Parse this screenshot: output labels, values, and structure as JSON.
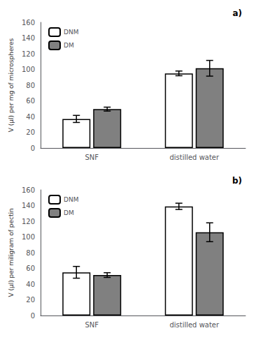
{
  "chart_data": [
    {
      "type": "bar",
      "title": "a)",
      "ylabel": "V (µl) per mg of microspheres",
      "categories": [
        "SNF",
        "distilled water"
      ],
      "series": [
        {
          "name": "DNM",
          "color": "#ffffff",
          "values": [
            37.0,
            95.0
          ],
          "errors": [
            4.5,
            3.0
          ]
        },
        {
          "name": "DM",
          "color": "#808080",
          "values": [
            49.5,
            101.5
          ],
          "errors": [
            2.5,
            10.0
          ]
        }
      ],
      "ylim": [
        0,
        160
      ],
      "yticks": [
        0,
        20,
        40,
        60,
        80,
        100,
        120,
        140,
        160
      ],
      "grid": false,
      "legend": "upper left"
    },
    {
      "type": "bar",
      "title": "b)",
      "ylabel": "V (µl) per miligram of pectin",
      "categories": [
        "SNF",
        "distilled water"
      ],
      "series": [
        {
          "name": "DNM",
          "color": "#ffffff",
          "values": [
            55.0,
            139.0
          ],
          "errors": [
            7.5,
            4.0
          ]
        },
        {
          "name": "DM",
          "color": "#808080",
          "values": [
            51.5,
            106.0
          ],
          "errors": [
            3.0,
            12.0
          ]
        }
      ],
      "ylim": [
        0,
        160
      ],
      "yticks": [
        0,
        20,
        40,
        60,
        80,
        100,
        120,
        140,
        160
      ],
      "grid": false,
      "legend": "upper left"
    }
  ]
}
